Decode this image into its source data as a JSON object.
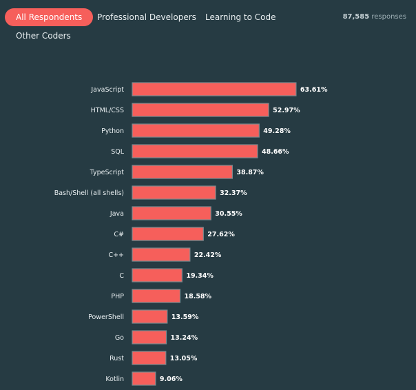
{
  "tabs": [
    {
      "label": "All Respondents",
      "active": true
    },
    {
      "label": "Professional Developers",
      "active": false
    },
    {
      "label": "Learning to Code",
      "active": false
    },
    {
      "label": "Other Coders",
      "active": false
    }
  ],
  "responses": {
    "count": "87,585",
    "label": "responses"
  },
  "colors": {
    "background": "#263b43",
    "bar": "#f65f5b",
    "active_tab": "#f65f5b"
  },
  "chart_data": {
    "type": "bar",
    "orientation": "horizontal",
    "categories": [
      "JavaScript",
      "HTML/CSS",
      "Python",
      "SQL",
      "TypeScript",
      "Bash/Shell (all shells)",
      "Java",
      "C#",
      "C++",
      "C",
      "PHP",
      "PowerShell",
      "Go",
      "Rust",
      "Kotlin"
    ],
    "values": [
      63.61,
      52.97,
      49.28,
      48.66,
      38.87,
      32.37,
      30.55,
      27.62,
      22.42,
      19.34,
      18.58,
      13.59,
      13.24,
      13.05,
      9.06
    ],
    "value_labels": [
      "63.61%",
      "52.97%",
      "49.28%",
      "48.66%",
      "38.87%",
      "32.37%",
      "30.55%",
      "27.62%",
      "22.42%",
      "19.34%",
      "18.58%",
      "13.59%",
      "13.24%",
      "13.05%",
      "9.06%"
    ],
    "unit": "%",
    "xlim": [
      0,
      100
    ],
    "title": "",
    "xlabel": "",
    "ylabel": "",
    "grid": false
  }
}
